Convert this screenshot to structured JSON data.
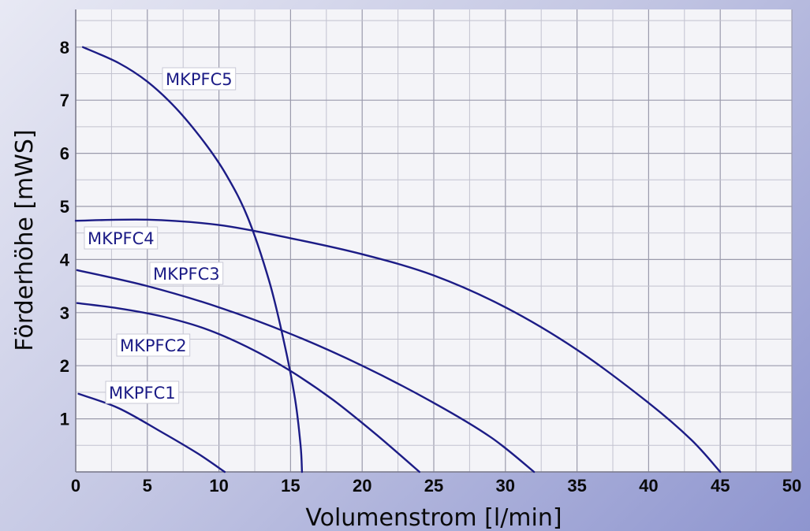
{
  "chart_data": {
    "type": "line",
    "xlabel": "Volumenstrom [l/min]",
    "ylabel": "Förderhöhe  [mWS]",
    "xlim": [
      0,
      50
    ],
    "ylim": [
      0,
      8.8
    ],
    "xticks": [
      "0",
      "5",
      "10",
      "15",
      "20",
      "25",
      "30",
      "35",
      "40",
      "45",
      "50"
    ],
    "yticks": [
      "1",
      "2",
      "3",
      "4",
      "5",
      "6",
      "7",
      "8"
    ],
    "grid": true,
    "line_color": "#1c1c86",
    "series": [
      {
        "name": "MKPFC1",
        "x": [
          0.2,
          3,
          6,
          8.5,
          10.4
        ],
        "y": [
          1.47,
          1.2,
          0.75,
          0.35,
          0.0
        ]
      },
      {
        "name": "MKPFC2",
        "x": [
          0.1,
          3,
          6,
          9,
          12,
          15,
          18,
          21,
          24
        ],
        "y": [
          3.18,
          3.08,
          2.93,
          2.7,
          2.35,
          1.9,
          1.35,
          0.7,
          0.0
        ]
      },
      {
        "name": "MKPFC3",
        "x": [
          0.1,
          5,
          10,
          15,
          20,
          25,
          29,
          32
        ],
        "y": [
          3.8,
          3.5,
          3.1,
          2.6,
          2.0,
          1.3,
          0.65,
          0.0
        ]
      },
      {
        "name": "MKPFC4",
        "x": [
          0,
          5,
          10,
          15,
          20,
          25,
          30,
          35,
          40,
          43,
          45
        ],
        "y": [
          4.73,
          4.75,
          4.65,
          4.4,
          4.1,
          3.7,
          3.1,
          2.3,
          1.3,
          0.6,
          0.0
        ]
      },
      {
        "name": "MKPFC5",
        "x": [
          0.5,
          3,
          5,
          7,
          9,
          10.5,
          12,
          13.5,
          14.5,
          15.3,
          15.7,
          15.8
        ],
        "y": [
          8.0,
          7.7,
          7.35,
          6.85,
          6.2,
          5.6,
          4.8,
          3.6,
          2.5,
          1.4,
          0.5,
          0.0
        ]
      }
    ]
  }
}
